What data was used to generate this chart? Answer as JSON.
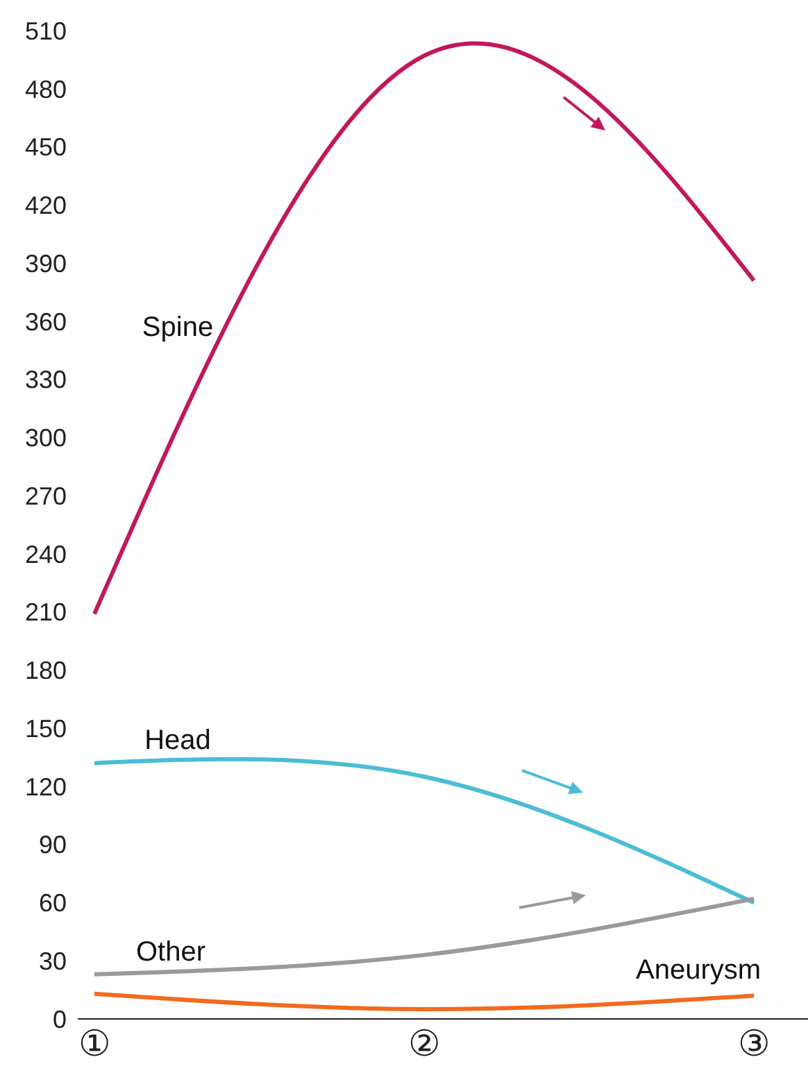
{
  "chart_data": {
    "type": "line",
    "categories": [
      "①",
      "②",
      "③"
    ],
    "series": [
      {
        "name": "Spine",
        "color": "#c2185b",
        "values": [
          209,
          497,
          381
        ]
      },
      {
        "name": "Head",
        "color": "#4bbdd6",
        "values": [
          132,
          125,
          60
        ]
      },
      {
        "name": "Other",
        "color": "#9a999e",
        "values": [
          23,
          33,
          62
        ]
      },
      {
        "name": "Aneurysm",
        "color": "#f26a1c",
        "values": [
          13,
          5,
          12
        ]
      }
    ],
    "ylim": [
      0,
      510
    ],
    "yticks": [
      0,
      30,
      60,
      90,
      120,
      150,
      180,
      210,
      240,
      270,
      300,
      330,
      360,
      390,
      420,
      450,
      480,
      510
    ],
    "grid": false,
    "legend": false,
    "marker": "none",
    "line_style": "solid"
  }
}
